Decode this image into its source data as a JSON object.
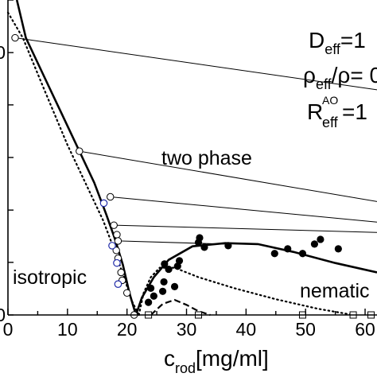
{
  "chart_data": {
    "type": "scatter",
    "xlabel_main": "c",
    "xlabel_sub": "rod",
    "xlabel_unit": "[mg/ml]",
    "xlim": [
      0,
      62
    ],
    "ylim": [
      0,
      1.0
    ],
    "x_tick_labels": [
      {
        "x": 0,
        "label": "0"
      },
      {
        "x": 10,
        "label": "10"
      },
      {
        "x": 20,
        "label": "20"
      },
      {
        "x": 30,
        "label": "30"
      },
      {
        "x": 40,
        "label": "40"
      },
      {
        "x": 50,
        "label": "50"
      },
      {
        "x": 60,
        "label": "60"
      }
    ],
    "y_ticks": [
      0,
      0.167,
      0.333,
      0.5,
      0.667,
      0.833,
      1.0
    ],
    "y_tick_labels_visible": [
      {
        "y": 0,
        "label": "0"
      },
      {
        "y": 0.833,
        "label": "0"
      }
    ],
    "params": {
      "d_main": "D",
      "d_sub": "eff",
      "d_val": "=1",
      "rho_main": "ρ",
      "rho_sub": "eff",
      "rho_mid": "/ρ",
      "rho_val": "= 0",
      "r_main": "R",
      "r_sub": "eff",
      "r_sup": "AO",
      "r_val": "=1"
    },
    "region_labels": {
      "two_phase": "two phase",
      "isotropic": "isotropic",
      "nematic": "nematic"
    },
    "isotropic_points_open": [
      [
        1.2,
        0.88
      ],
      [
        12.0,
        0.52
      ],
      [
        17.2,
        0.375
      ],
      [
        17.8,
        0.285
      ],
      [
        18.3,
        0.255
      ],
      [
        18.5,
        0.235
      ],
      [
        18.2,
        0.205
      ],
      [
        18.5,
        0.18
      ],
      [
        19.0,
        0.135
      ],
      [
        19.2,
        0.11
      ],
      [
        20.0,
        0.07
      ],
      [
        21.2,
        0.0
      ]
    ],
    "isotropic_points_blue": [
      [
        16.1,
        0.355
      ],
      [
        17.5,
        0.22
      ],
      [
        18.3,
        0.165
      ],
      [
        18.5,
        0.098
      ]
    ],
    "nematic_points_filled": [
      [
        23.6,
        0.04
      ],
      [
        24.5,
        0.06
      ],
      [
        24.0,
        0.085
      ],
      [
        26.0,
        0.075
      ],
      [
        26.2,
        0.105
      ],
      [
        28.0,
        0.09
      ],
      [
        27.0,
        0.145
      ],
      [
        28.5,
        0.155
      ],
      [
        26.3,
        0.162
      ],
      [
        28.8,
        0.172
      ],
      [
        33.0,
        0.215
      ],
      [
        32.0,
        0.23
      ],
      [
        37.0,
        0.22
      ],
      [
        44.8,
        0.195
      ],
      [
        51.5,
        0.225
      ],
      [
        55.5,
        0.21
      ],
      [
        52.5,
        0.24
      ],
      [
        47.0,
        0.21
      ],
      [
        49.5,
        0.195
      ],
      [
        32.2,
        0.245
      ]
    ],
    "open_squares": [
      [
        23.6,
        0.0
      ],
      [
        32.0,
        0.0
      ],
      [
        49.5,
        0.0
      ],
      [
        58.0,
        0.0
      ],
      [
        61.0,
        0.0
      ]
    ],
    "tie_lines": [
      [
        [
          1.2,
          0.88
        ],
        [
          62.0,
          0.715
        ]
      ],
      [
        [
          12.0,
          0.52
        ],
        [
          62.0,
          0.36
        ]
      ],
      [
        [
          17.2,
          0.375
        ],
        [
          62.0,
          0.295
        ]
      ],
      [
        [
          17.8,
          0.285
        ],
        [
          62.0,
          0.262
        ]
      ],
      [
        [
          18.5,
          0.235
        ],
        [
          36.5,
          0.225
        ]
      ]
    ],
    "solid_isotropic_boundary": [
      [
        1.5,
        1.0
      ],
      [
        3.0,
        0.88
      ],
      [
        6.0,
        0.76
      ],
      [
        9.0,
        0.64
      ],
      [
        12.0,
        0.52
      ],
      [
        14.5,
        0.42
      ],
      [
        16.5,
        0.32
      ],
      [
        18.0,
        0.24
      ],
      [
        19.3,
        0.16
      ],
      [
        20.4,
        0.07
      ],
      [
        21.5,
        0.0
      ]
    ],
    "solid_nematic_boundary": [
      [
        21.5,
        0.0
      ],
      [
        22.5,
        0.055
      ],
      [
        24.5,
        0.12
      ],
      [
        27.0,
        0.175
      ],
      [
        31.0,
        0.218
      ],
      [
        36.5,
        0.228
      ],
      [
        42.0,
        0.225
      ],
      [
        48.0,
        0.2
      ],
      [
        55.0,
        0.165
      ],
      [
        62.0,
        0.135
      ]
    ],
    "dotted_isotropic_boundary": [
      [
        0.0,
        0.96
      ],
      [
        2.5,
        0.88
      ],
      [
        6.0,
        0.72
      ],
      [
        10.0,
        0.54
      ],
      [
        13.5,
        0.4
      ],
      [
        16.0,
        0.3
      ],
      [
        18.0,
        0.2
      ],
      [
        19.5,
        0.12
      ],
      [
        20.8,
        0.045
      ],
      [
        22.0,
        0.0
      ]
    ],
    "dotted_nematic_boundary": [
      [
        22.0,
        0.0
      ],
      [
        22.8,
        0.07
      ],
      [
        24.0,
        0.12
      ],
      [
        25.5,
        0.15
      ],
      [
        28.0,
        0.15
      ],
      [
        32.0,
        0.12
      ],
      [
        38.0,
        0.085
      ],
      [
        45.0,
        0.05
      ],
      [
        52.0,
        0.02
      ],
      [
        58.0,
        0.0
      ]
    ],
    "dashed_curve": [
      [
        24.0,
        0.0
      ],
      [
        26.0,
        0.035
      ],
      [
        28.0,
        0.048
      ],
      [
        30.0,
        0.032
      ],
      [
        32.0,
        0.012
      ],
      [
        34.0,
        0.0
      ]
    ]
  }
}
